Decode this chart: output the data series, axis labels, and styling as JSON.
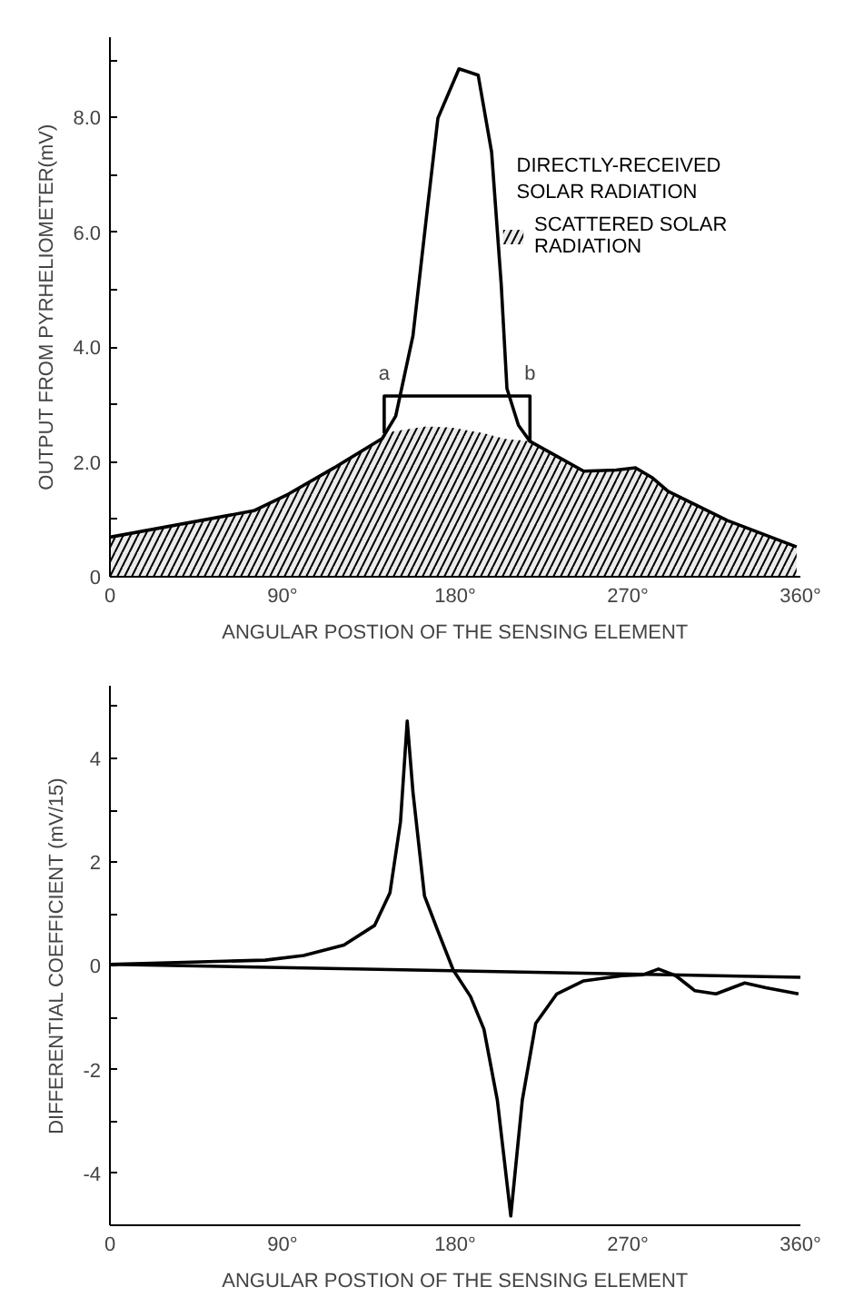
{
  "chart_data": [
    {
      "type": "line",
      "xlabel": "ANGULAR POSTION OF THE SENSING ELEMENT",
      "ylabel": "OUTPUT FROM PYRHELIOMETER(mV)",
      "xlim": [
        0,
        360
      ],
      "ylim": [
        0,
        9.4
      ],
      "xticks": [
        0,
        {
          "value": 90,
          "label": "90°"
        },
        {
          "value": 180,
          "label": "180°"
        },
        {
          "value": 270,
          "label": "270°"
        },
        {
          "value": 360,
          "label": "360°"
        }
      ],
      "yticks": [
        0,
        {
          "value": 1,
          "label": null
        },
        {
          "value": 2,
          "label": "2.0"
        },
        {
          "value": 3,
          "label": null
        },
        {
          "value": 4,
          "label": "4.0"
        },
        {
          "value": 5,
          "label": null
        },
        {
          "value": 6,
          "label": "6.0"
        },
        {
          "value": 7,
          "label": null
        },
        {
          "value": 8,
          "label": "8.0"
        },
        {
          "value": 9,
          "label": null
        }
      ],
      "legend": "right",
      "grid": false,
      "series": [
        {
          "type": "area",
          "name": "SCATTERED SOLAR\nRADIATION",
          "color": "#000000",
          "x": [
            0,
            75,
            93,
            117,
            142,
            147,
            165,
            178,
            195,
            206,
            219,
            247,
            264,
            274,
            283,
            291,
            322,
            358
          ],
          "values": [
            0.69,
            1.15,
            1.44,
            1.9,
            2.41,
            2.53,
            2.62,
            2.6,
            2.5,
            2.4,
            2.36,
            1.84,
            1.86,
            1.9,
            1.72,
            1.49,
            0.98,
            0.52
          ]
        },
        {
          "type": "line",
          "name": "DIRECTLY-RECEIVED\nSOLAR RADIATION",
          "color": "#000000",
          "x": [
            0,
            75,
            93,
            117,
            142,
            149,
            158,
            165,
            171,
            182,
            192,
            199,
            204,
            207,
            213,
            219,
            247,
            264,
            274,
            283,
            291,
            322,
            358
          ],
          "values": [
            0.69,
            1.15,
            1.44,
            1.9,
            2.41,
            2.8,
            4.2,
            6.26,
            7.99,
            8.85,
            8.74,
            7.4,
            5.1,
            3.28,
            2.64,
            2.36,
            1.84,
            1.86,
            1.9,
            1.72,
            1.49,
            0.98,
            0.52
          ]
        },
        {
          "type": "line",
          "color": "#000000",
          "x": [
            143,
            143,
            219,
            219
          ],
          "values": [
            2.5,
            3.15,
            3.15,
            2.35
          ]
        }
      ],
      "annotations": [
        {
          "text": "a",
          "x": 143,
          "y": 3.15
        },
        {
          "text": "b",
          "x": 219,
          "y": 3.15
        }
      ]
    },
    {
      "type": "line",
      "xlabel": "ANGULAR POSTION OF THE SENSING ELEMENT",
      "ylabel": "DIFFERENTIAL COEFFICIENT (mV/15)",
      "xlim": [
        0,
        360
      ],
      "ylim": [
        -5,
        5.4
      ],
      "xticks": [
        0,
        {
          "value": 90,
          "label": "90°"
        },
        {
          "value": 180,
          "label": "180°"
        },
        {
          "value": 270,
          "label": "270°"
        },
        {
          "value": 360,
          "label": "360°"
        }
      ],
      "yticks": [
        {
          "value": -5,
          "label": null
        },
        -4,
        {
          "value": -3,
          "label": null
        },
        -2,
        {
          "value": -1,
          "label": null
        },
        0,
        {
          "value": 1,
          "label": null
        },
        2,
        {
          "value": 3,
          "label": null
        },
        4,
        {
          "value": 5,
          "label": null
        }
      ],
      "grid": false,
      "series": [
        {
          "color": "#000000",
          "x": [
            0,
            39,
            81,
            101,
            122,
            138,
            146,
            151.5,
            155,
            158,
            164,
            170.5,
            179,
            188,
            195,
            202,
            209,
            215,
            222,
            233,
            247,
            267,
            278,
            286,
            295,
            305,
            316,
            331,
            342,
            359
          ],
          "values": [
            0.03,
            0.07,
            0.11,
            0.2,
            0.4,
            0.78,
            1.41,
            2.78,
            4.72,
            3.35,
            1.35,
            0.72,
            -0.08,
            -0.59,
            -1.22,
            -2.59,
            -4.82,
            -2.59,
            -1.11,
            -0.54,
            -0.29,
            -0.19,
            -0.17,
            -0.06,
            -0.19,
            -0.48,
            -0.54,
            -0.33,
            -0.42,
            -0.54
          ]
        },
        {
          "color": "#000000",
          "x": [
            0,
            360
          ],
          "values": [
            0.03,
            -0.22
          ]
        }
      ]
    }
  ]
}
